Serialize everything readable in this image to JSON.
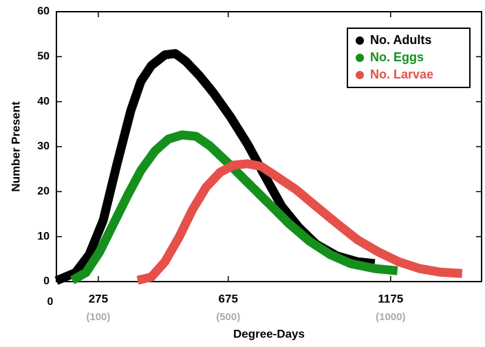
{
  "chart_data": {
    "type": "line",
    "x_label": "Degree-Days",
    "y_label": "Number Present",
    "origin_label": "0",
    "xlim": [
      146,
      1455
    ],
    "ylim": [
      0,
      60
    ],
    "yticks": [
      0,
      10,
      20,
      30,
      40,
      50,
      60
    ],
    "xticks": [
      275,
      675,
      1175
    ],
    "xticks_secondary": [
      {
        "value": 275,
        "label": "(100)"
      },
      {
        "value": 675,
        "label": "(500)"
      },
      {
        "value": 1175,
        "label": "(1000)"
      }
    ],
    "legend": "upper right",
    "series": [
      {
        "name": "No. Adults",
        "color": "#000000",
        "x": [
          146,
          205,
          247,
          290,
          332,
          375,
          406,
          438,
          480,
          512,
          544,
          586,
          629,
          682,
          735,
          787,
          840,
          893,
          946,
          1010,
          1073,
          1126
        ],
        "values": [
          0.2,
          2,
          6,
          13.6,
          26,
          38,
          44.5,
          48,
          50.4,
          50.7,
          49,
          45.8,
          42,
          36.6,
          30.5,
          23.6,
          16.7,
          12,
          8.3,
          5.7,
          4.4,
          4
        ]
      },
      {
        "name": "No. Eggs",
        "color": "#15901c",
        "x": [
          195,
          237,
          279,
          322,
          364,
          406,
          449,
          491,
          533,
          576,
          618,
          671,
          735,
          798,
          862,
          925,
          989,
          1052,
          1126,
          1196
        ],
        "values": [
          0.3,
          2,
          6.6,
          12.9,
          19,
          24.7,
          29,
          31.7,
          32.6,
          32.3,
          30.2,
          26.6,
          22,
          17.5,
          12.9,
          9,
          6,
          4,
          2.9,
          2.4
        ]
      },
      {
        "name": "No. Larvae",
        "color": "#e5504b",
        "x": [
          396,
          438,
          480,
          523,
          565,
          607,
          650,
          692,
          735,
          777,
          819,
          883,
          946,
          1010,
          1073,
          1137,
          1200,
          1264,
          1327,
          1395
        ],
        "values": [
          0.3,
          1,
          4.4,
          9.8,
          16,
          21,
          24.3,
          25.9,
          26.2,
          25.6,
          23.6,
          20.5,
          16.7,
          12.9,
          9.3,
          6.6,
          4.4,
          2.9,
          2.1,
          1.8
        ]
      }
    ]
  }
}
